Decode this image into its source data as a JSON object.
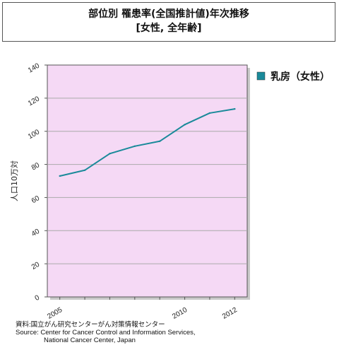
{
  "title": {
    "line1": "部位別 罹患率(全国推計値)年次推移",
    "line2": "[女性, 全年齢]"
  },
  "source": {
    "line1": "資料:国立がん研究センターがん対策情報センター",
    "line2": "Source: Center for Cancer Control and Information Services,",
    "line3": "National Cancer Center, Japan"
  },
  "colors": {
    "plot_background": "#f5d9f5",
    "series_line": "#1a8a9a",
    "grid": "#aaaaaa"
  },
  "chart_data": {
    "type": "line",
    "title": "部位別 罹患率(全国推計値)年次推移 [女性, 全年齢]",
    "ylabel": "人口10万対",
    "xlabel": "",
    "ylim": [
      0,
      140
    ],
    "yticks": [
      0,
      20,
      40,
      60,
      80,
      100,
      120,
      140
    ],
    "xlim": [
      2004.5,
      2012.5
    ],
    "xtick_labels": [
      "2005",
      "2010",
      "2012"
    ],
    "xtick_values": [
      2005,
      2010,
      2012
    ],
    "grid": true,
    "legend_position": "right",
    "series": [
      {
        "name": "乳房（女性）",
        "x": [
          2005,
          2006,
          2007,
          2008,
          2009,
          2010,
          2011,
          2012
        ],
        "values": [
          73,
          76.5,
          86.5,
          91,
          94,
          104,
          111,
          113.5
        ]
      }
    ]
  }
}
